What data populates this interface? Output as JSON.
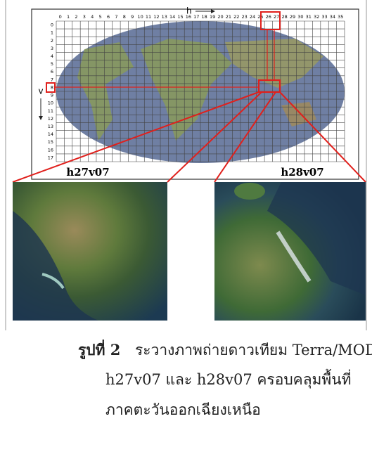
{
  "figure": {
    "h_label": "h",
    "v_label": "v",
    "h_numbers": [
      0,
      1,
      2,
      3,
      4,
      5,
      6,
      7,
      8,
      9,
      10,
      11,
      12,
      13,
      14,
      15,
      16,
      17,
      18,
      19,
      20,
      21,
      22,
      23,
      24,
      25,
      26,
      27,
      28,
      29,
      30,
      31,
      32,
      33,
      34,
      35
    ],
    "v_numbers": [
      0,
      1,
      2,
      3,
      4,
      5,
      6,
      7,
      8,
      9,
      10,
      11,
      12,
      13,
      14,
      15,
      16,
      17
    ],
    "tiles": [
      "h27v07",
      "h28v07"
    ]
  },
  "caption": {
    "label": "รูปที่ 2",
    "lines": [
      "ระวางภาพถ่ายดาวเทียม Terra/MODIS",
      "h27v07 และ h28v07 ครอบคลุมพื้นที่",
      "ภาคตะวันออกเฉียงเหนือ"
    ]
  }
}
